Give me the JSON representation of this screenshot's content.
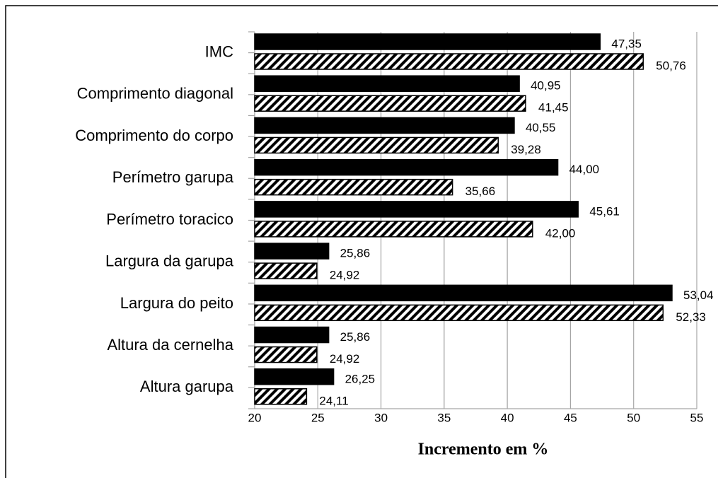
{
  "chart_data": {
    "type": "hbar",
    "categories": [
      "IMC",
      "Comprimento diagonal",
      "Comprimento do corpo",
      "Perímetro garupa",
      "Perímetro toracico",
      "Largura da garupa",
      "Largura do peito",
      "Altura da cernelha",
      "Altura garupa"
    ],
    "series": [
      {
        "color": "#000000",
        "fill": "solid",
        "values": [
          47.35,
          40.95,
          40.55,
          44.0,
          45.61,
          25.86,
          53.04,
          25.86,
          26.25
        ],
        "value_labels": [
          "47,35",
          "40,95",
          "40,55",
          "44,00",
          "45,61",
          "25,86",
          "53,04",
          "25,86",
          "26,25"
        ]
      },
      {
        "color": "#000000",
        "fill": "hatch",
        "values": [
          50.76,
          41.45,
          39.28,
          35.66,
          42.0,
          24.92,
          52.33,
          24.92,
          24.11
        ],
        "value_labels": [
          "50,76",
          "41,45",
          "39,28",
          "35,66",
          "42,00",
          "24,92",
          "52,33",
          "24,92",
          "24,11"
        ]
      }
    ],
    "xlabel": "Incremento em %",
    "xlim": [
      20,
      55
    ],
    "xticks": [
      20,
      25,
      30,
      35,
      40,
      45,
      50,
      55
    ],
    "grid": true
  }
}
